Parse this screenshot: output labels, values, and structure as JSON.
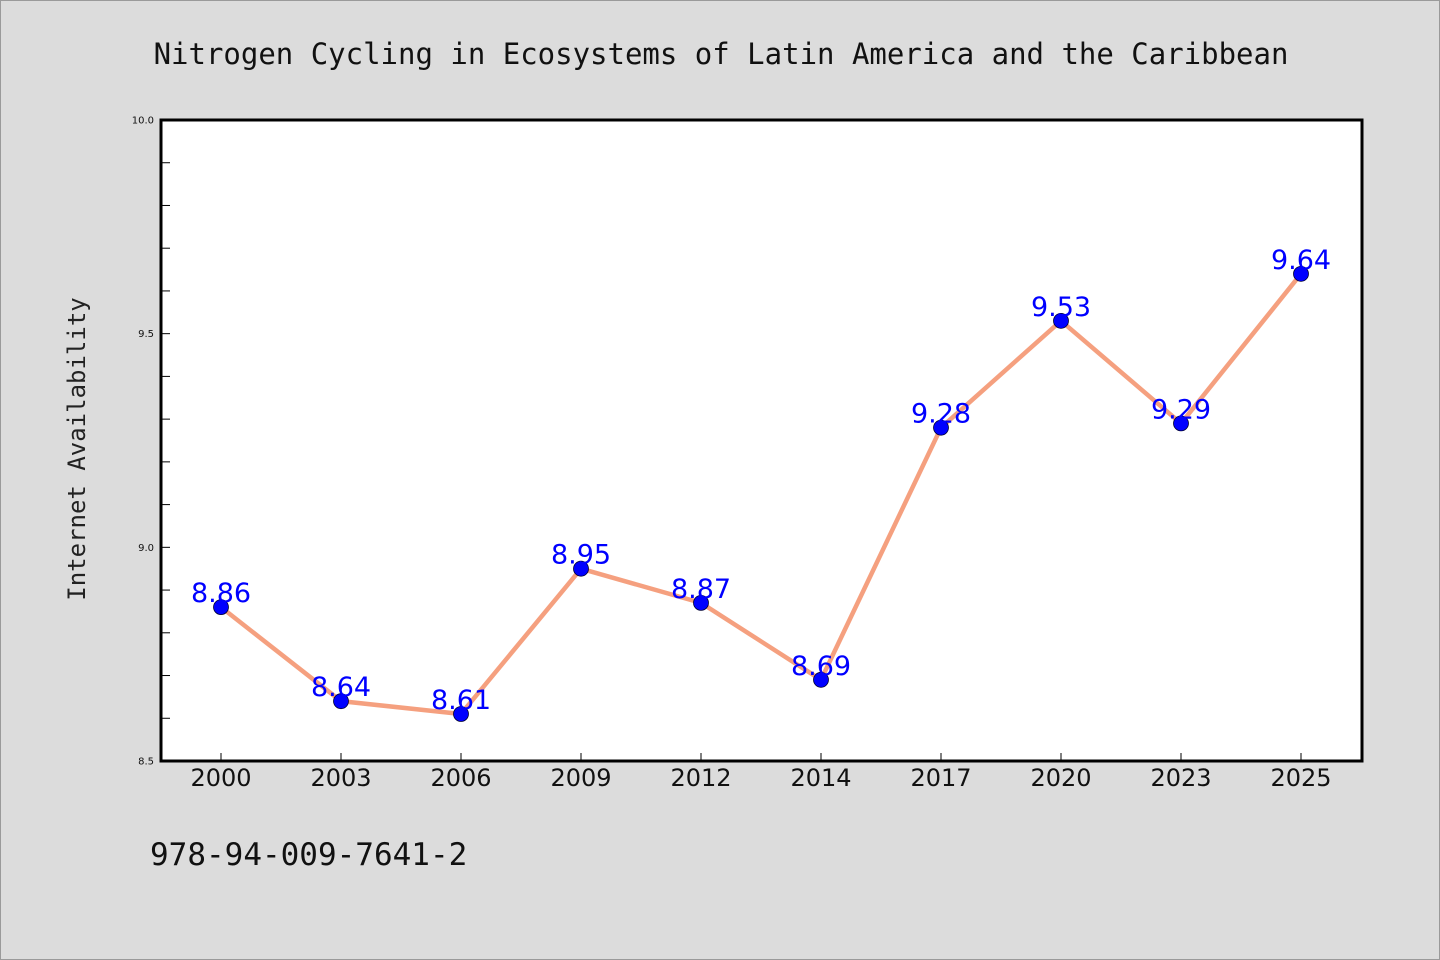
{
  "colors": {
    "background": "#dcdcdc",
    "plot_background": "#ffffff",
    "line": "#f5a07f",
    "marker": "#0000ff",
    "data_label": "#0000ff",
    "axis": "#000000"
  },
  "footer": {
    "isbn": "978-94-009-7641-2"
  },
  "chart_data": {
    "type": "line",
    "title": "Nitrogen Cycling in Ecosystems of Latin America and the Caribbean",
    "xlabel": "",
    "ylabel": "Internet Availability",
    "categories": [
      "2000",
      "2003",
      "2006",
      "2009",
      "2012",
      "2014",
      "2017",
      "2020",
      "2023",
      "2025"
    ],
    "series": [
      {
        "values": [
          8.86,
          8.64,
          8.61,
          8.95,
          8.87,
          8.69,
          9.28,
          9.53,
          9.29,
          9.64
        ],
        "labels": [
          "8.86",
          "8.64",
          "8.61",
          "8.95",
          "8.87",
          "8.69",
          "9.28",
          "9.53",
          "9.29",
          "9.64"
        ]
      }
    ],
    "ylim": [
      8.5,
      10.0
    ],
    "yticks": [
      "8.5",
      "9.0",
      "9.5",
      "10.0"
    ],
    "yminor_step": 0.1,
    "grid": false,
    "legend": "none",
    "markers": "circle"
  }
}
